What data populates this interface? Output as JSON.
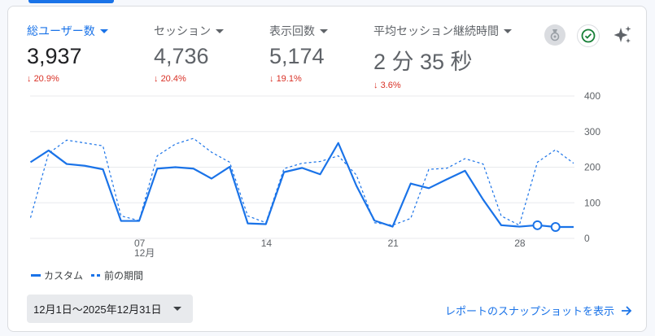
{
  "metrics": [
    {
      "label": "総ユーザー数",
      "value": "3,937",
      "delta": "20.9%",
      "active": true
    },
    {
      "label": "セッション",
      "value": "4,736",
      "delta": "20.4%"
    },
    {
      "label": "表示回数",
      "value": "5,174",
      "delta": "19.1%"
    },
    {
      "label": "平均セッション継続時間",
      "value": "2 分 35 秒",
      "delta": "3.6%"
    }
  ],
  "icons": {
    "badge": "medal-icon",
    "check": "check-circle-icon",
    "insights": "sparkle-icon"
  },
  "colors": {
    "accent": "#1a73e8",
    "negative": "#d93025",
    "check": "#188038"
  },
  "chart_data": {
    "type": "line",
    "x_ticks": [
      "07",
      "14",
      "21",
      "28"
    ],
    "x_tick_sub": "12月",
    "y_ticks": [
      "0",
      "100",
      "200",
      "300",
      "400"
    ],
    "ylim": [
      0,
      400
    ],
    "y_axis_side": "right",
    "grid": true,
    "x": [
      1,
      2,
      3,
      4,
      5,
      6,
      7,
      8,
      9,
      10,
      11,
      12,
      13,
      14,
      15,
      16,
      17,
      18,
      19,
      20,
      21,
      22,
      23,
      24,
      25,
      26,
      27,
      28,
      29,
      30,
      31
    ],
    "series": [
      {
        "name": "カスタム",
        "style": "solid",
        "values": [
          214,
          247,
          209,
          204,
          194,
          49,
          49,
          196,
          200,
          196,
          168,
          201,
          42,
          40,
          186,
          198,
          180,
          268,
          148,
          50,
          33,
          154,
          141,
          166,
          190,
          109,
          37,
          33,
          37,
          32,
          32
        ],
        "hollow_markers_at": [
          29,
          30
        ]
      },
      {
        "name": "前の期間",
        "style": "dashed",
        "values": [
          58,
          239,
          276,
          268,
          260,
          63,
          50,
          232,
          265,
          281,
          242,
          214,
          63,
          44,
          196,
          211,
          216,
          232,
          178,
          44,
          37,
          56,
          194,
          197,
          224,
          209,
          63,
          37,
          214,
          249,
          211
        ]
      }
    ],
    "legend_position": "bottom-left"
  },
  "footer": {
    "date_range": "12月1日～2025年12月31日",
    "report_link": "レポートのスナップショットを表示"
  }
}
